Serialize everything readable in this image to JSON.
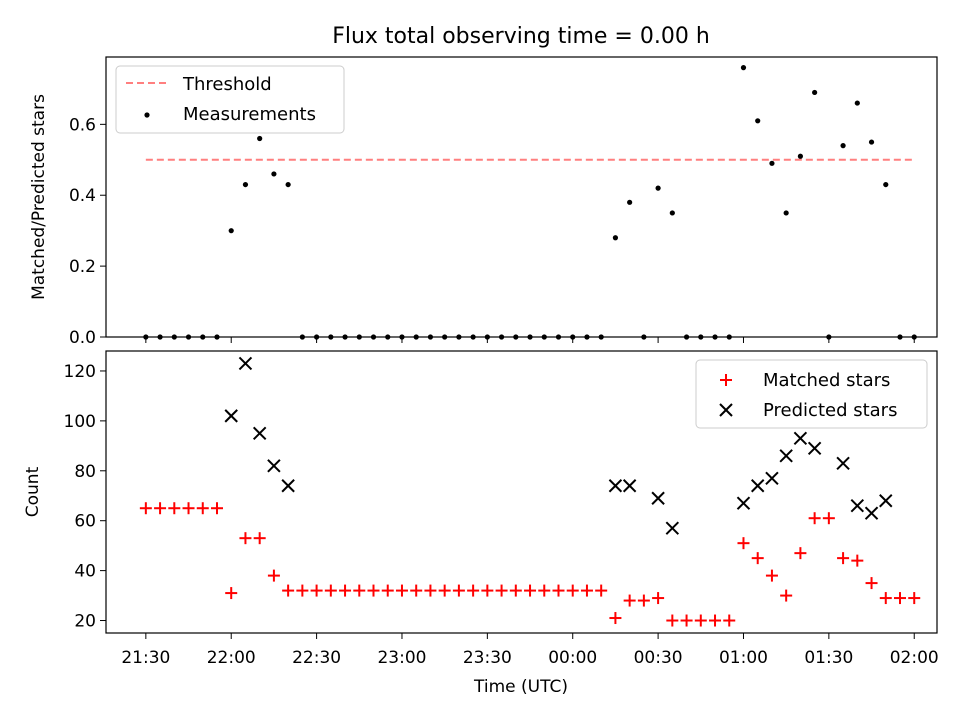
{
  "title": "Flux total observing time = 0.00 h",
  "xlabel": "Time (UTC)",
  "x_ticks": [
    {
      "label": "21:30",
      "value": 0
    },
    {
      "label": "22:00",
      "value": 30
    },
    {
      "label": "22:30",
      "value": 60
    },
    {
      "label": "23:00",
      "value": 90
    },
    {
      "label": "23:30",
      "value": 120
    },
    {
      "label": "00:00",
      "value": 150
    },
    {
      "label": "00:30",
      "value": 180
    },
    {
      "label": "01:00",
      "value": 210
    },
    {
      "label": "01:30",
      "value": 240
    },
    {
      "label": "02:00",
      "value": 270
    }
  ],
  "colors": {
    "threshold": "#ff7f7f",
    "measurements": "#000000",
    "matched": "#ff0000",
    "predicted": "#000000"
  },
  "chart_data": [
    {
      "type": "scatter",
      "ylabel": "Matched/Predicted stars",
      "xlim": [
        -14,
        278
      ],
      "ylim": [
        0,
        0.79
      ],
      "y_ticks": [
        "0.0",
        "0.2",
        "0.4",
        "0.6"
      ],
      "y_tick_values": [
        0,
        0.2,
        0.4,
        0.6
      ],
      "legend_position": "top-left",
      "threshold": {
        "name": "Threshold",
        "value": 0.5,
        "x_range": [
          0,
          270
        ]
      },
      "series": [
        {
          "name": "Measurements",
          "x": [
            0,
            5,
            10,
            15,
            20,
            25,
            30,
            35,
            40,
            45,
            50,
            55,
            60,
            65,
            70,
            75,
            80,
            85,
            90,
            95,
            100,
            105,
            110,
            115,
            120,
            125,
            130,
            135,
            140,
            145,
            150,
            155,
            160,
            165,
            170,
            175,
            180,
            185,
            190,
            195,
            200,
            205,
            210,
            215,
            220,
            225,
            230,
            235,
            240,
            245,
            250,
            255,
            260,
            265,
            270
          ],
          "y": [
            0,
            0,
            0,
            0,
            0,
            0,
            0.3,
            0.43,
            0.56,
            0.46,
            0.43,
            0,
            0,
            0,
            0,
            0,
            0,
            0,
            0,
            0,
            0,
            0,
            0,
            0,
            0,
            0,
            0,
            0,
            0,
            0,
            0,
            0,
            0,
            0.28,
            0.38,
            0,
            0.42,
            0.35,
            0,
            0,
            0,
            0,
            0.76,
            0.61,
            0.49,
            0.35,
            0.51,
            0.69,
            0,
            0.54,
            0.66,
            0.55,
            0.43,
            0,
            0
          ]
        }
      ]
    },
    {
      "type": "scatter",
      "ylabel": "Count",
      "xlim": [
        -14,
        278
      ],
      "ylim": [
        15,
        128
      ],
      "y_ticks": [
        "20",
        "40",
        "60",
        "80",
        "100",
        "120"
      ],
      "y_tick_values": [
        20,
        40,
        60,
        80,
        100,
        120
      ],
      "legend_position": "top-right",
      "series": [
        {
          "name": "Matched stars",
          "marker": "+",
          "x": [
            0,
            5,
            10,
            15,
            20,
            25,
            30,
            35,
            40,
            45,
            50,
            55,
            60,
            65,
            70,
            75,
            80,
            85,
            90,
            95,
            100,
            105,
            110,
            115,
            120,
            125,
            130,
            135,
            140,
            145,
            150,
            155,
            160,
            165,
            170,
            175,
            180,
            185,
            190,
            195,
            200,
            205,
            210,
            215,
            220,
            225,
            230,
            235,
            240,
            245,
            250,
            255,
            260,
            265,
            270
          ],
          "y": [
            65,
            65,
            65,
            65,
            65,
            65,
            31,
            53,
            53,
            38,
            32,
            32,
            32,
            32,
            32,
            32,
            32,
            32,
            32,
            32,
            32,
            32,
            32,
            32,
            32,
            32,
            32,
            32,
            32,
            32,
            32,
            32,
            32,
            21,
            28,
            28,
            29,
            20,
            20,
            20,
            20,
            20,
            51,
            45,
            38,
            30,
            47,
            61,
            61,
            45,
            44,
            35,
            29,
            29,
            29
          ]
        },
        {
          "name": "Predicted stars",
          "marker": "x",
          "x": [
            30,
            35,
            40,
            45,
            50,
            165,
            170,
            180,
            185,
            210,
            215,
            220,
            225,
            230,
            235,
            245,
            250,
            255,
            260
          ],
          "y": [
            102,
            123,
            95,
            82,
            74,
            74,
            74,
            69,
            57,
            67,
            74,
            77,
            86,
            93,
            89,
            83,
            66,
            63,
            68
          ]
        }
      ]
    }
  ]
}
